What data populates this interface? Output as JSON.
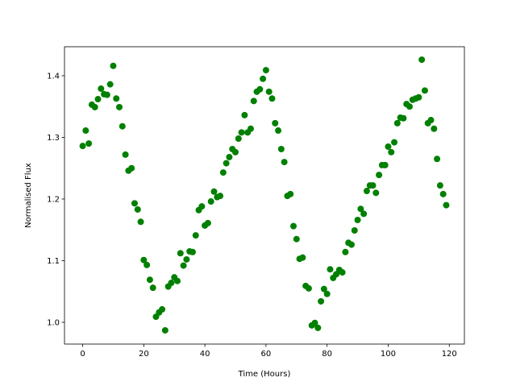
{
  "chart_data": {
    "type": "scatter",
    "color": "#008000",
    "x_label": "Time (Hours)",
    "y_label": "Normalised Flux",
    "x": [
      0,
      1,
      2,
      3,
      4,
      5,
      6,
      7,
      8,
      9,
      10,
      11,
      12,
      13,
      14,
      15,
      16,
      17,
      18,
      19,
      20,
      21,
      22,
      23,
      24,
      25,
      26,
      27,
      28,
      29,
      30,
      31,
      32,
      33,
      34,
      35,
      36,
      37,
      38,
      39,
      40,
      41,
      42,
      43,
      44,
      45,
      46,
      47,
      48,
      49,
      50,
      51,
      52,
      53,
      54,
      55,
      56,
      57,
      58,
      59,
      60,
      61,
      62,
      63,
      64,
      65,
      66,
      67,
      68,
      69,
      70,
      71,
      72,
      73,
      74,
      75,
      76,
      77,
      78,
      79,
      80,
      81,
      82,
      83,
      84,
      85,
      86,
      87,
      88,
      89,
      90,
      91,
      92,
      93,
      94,
      95,
      96,
      97,
      98,
      99,
      100,
      101,
      102,
      103,
      104,
      105,
      106,
      107,
      108,
      109,
      110,
      111,
      112,
      113,
      114,
      115,
      116,
      117,
      118,
      119
    ],
    "values": [
      1.286,
      1.311,
      1.29,
      1.353,
      1.349,
      1.362,
      1.379,
      1.37,
      1.369,
      1.386,
      1.416,
      1.363,
      1.349,
      1.318,
      1.272,
      1.246,
      1.25,
      1.193,
      1.183,
      1.163,
      1.101,
      1.093,
      1.069,
      1.056,
      1.009,
      1.016,
      1.021,
      0.987,
      1.058,
      1.064,
      1.073,
      1.067,
      1.112,
      1.092,
      1.102,
      1.115,
      1.114,
      1.141,
      1.182,
      1.188,
      1.157,
      1.161,
      1.196,
      1.212,
      1.203,
      1.205,
      1.243,
      1.258,
      1.268,
      1.281,
      1.276,
      1.298,
      1.308,
      1.336,
      1.308,
      1.314,
      1.359,
      1.374,
      1.378,
      1.395,
      1.409,
      1.374,
      1.363,
      1.323,
      1.311,
      1.281,
      1.26,
      1.205,
      1.208,
      1.156,
      1.135,
      1.103,
      1.105,
      1.059,
      1.055,
      0.995,
      0.999,
      0.991,
      1.034,
      1.054,
      1.046,
      1.086,
      1.072,
      1.078,
      1.085,
      1.081,
      1.114,
      1.129,
      1.126,
      1.149,
      1.166,
      1.184,
      1.176,
      1.213,
      1.222,
      1.222,
      1.21,
      1.239,
      1.255,
      1.255,
      1.285,
      1.276,
      1.292,
      1.323,
      1.332,
      1.331,
      1.354,
      1.35,
      1.361,
      1.363,
      1.365,
      1.426,
      1.376,
      1.323,
      1.328,
      1.314,
      1.265,
      1.222,
      1.208,
      1.19
    ],
    "xlim": [
      -5.95,
      124.95
    ],
    "xticks": [
      0,
      20,
      40,
      60,
      80,
      100,
      120
    ],
    "ylim": [
      0.9647,
      1.447
    ],
    "yticks": [
      {
        "value": 1,
        "label": "1.0"
      },
      1.1,
      1.2,
      1.3,
      1.4
    ]
  }
}
